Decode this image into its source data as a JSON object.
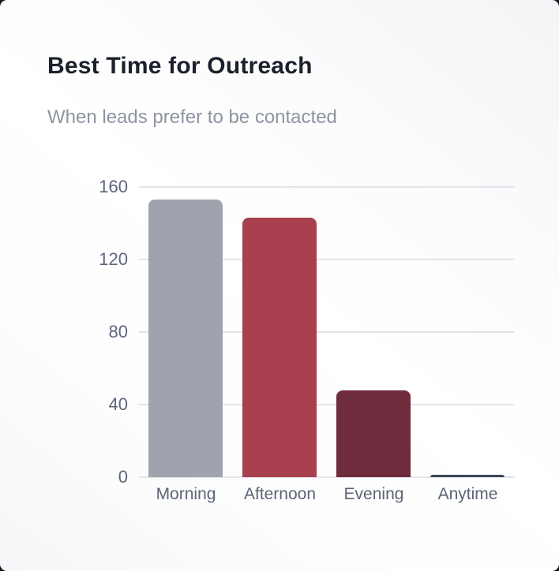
{
  "card": {
    "title": "Best Time for Outreach",
    "subtitle": "When leads prefer to be contacted"
  },
  "chart_data": {
    "type": "bar",
    "title": "Best Time for Outreach",
    "subtitle": "When leads prefer to be contacted",
    "categories": [
      "Morning",
      "Afternoon",
      "Evening",
      "Anytime"
    ],
    "values": [
      153,
      143,
      48,
      1
    ],
    "bar_colors": [
      "#9ea3ae",
      "#a9404f",
      "#6e2c3c",
      "#3e4758"
    ],
    "xlabel": "",
    "ylabel": "",
    "ylim": [
      0,
      160
    ],
    "yticks": [
      0,
      40,
      80,
      120,
      160
    ],
    "grid": true,
    "legend": false
  },
  "colors": {
    "title_text": "#1a202c",
    "subtitle_text": "#8d94a1",
    "axis_text": "#5e6679",
    "gridline": "#e3e4eb",
    "card_background": "#ffffff",
    "page_background": "#151922"
  }
}
